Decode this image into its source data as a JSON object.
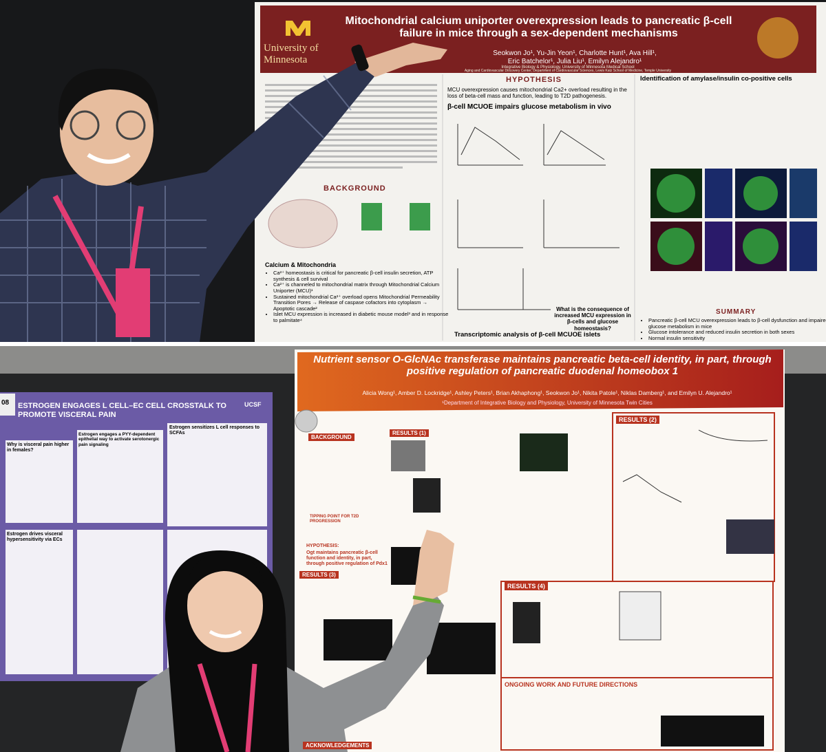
{
  "top_poster": {
    "university": "University of Minnesota",
    "title": "Mitochondrial calcium uniporter overexpression leads to pancreatic β-cell failure in mice through a sex-dependent mechanisms",
    "authors": [
      "Seokwon Jo¹, Yu-Jin Yeon¹, Charlotte Hunt¹, Ava Hill¹,",
      "Eric Batchelor¹, Julia Liu¹, Emilyn Alejandro¹"
    ],
    "affiliations": [
      "Integrative Biology & Physiology, University of Minnesota Medical School",
      "Aging and Cardiovascular Discovery Center, Department of Cardiovascular Sciences, Lewis Katz School of Medicine, Temple University"
    ],
    "background": {
      "heading": "BACKGROUND",
      "subheading": "Calcium & Mitochondria",
      "bullets": [
        "Ca²⁺ homeostasis is critical for pancreatic β-cell insulin secretion, ATP synthesis & cell survival",
        "Ca²⁺ is channeled to mitochondrial matrix through Mitochondrial Calcium Uniporter (MCU)¹",
        "Sustained mitochondrial Ca²⁺ overload opens Mitochondrial Permeability Transition Pores → Release of caspase cofactors into cytoplasm → Apoptotic cascade²",
        "Islet MCU expression is increased in diabetic mouse model³ and in response to palmitate⁴"
      ]
    },
    "hypothesis": {
      "heading": "HYPOTHESIS",
      "text": "MCU overexpression causes mitochondrial Ca2+ overload resulting in the loss of beta-cell mass and function, leading to T2D pathogenesis."
    },
    "results_heading": "β-cell MCUOE impairs glucose metabolism in vivo",
    "question": "What is the consequence of increased MCU expression in β-cells and glucose homeostasis?",
    "transcriptomic_heading": "Transcriptomic analysis of β-cell MCUOE islets",
    "identification_heading": "Identification of amylase/insulin co-positive cells",
    "summary": {
      "heading": "SUMMARY",
      "bullets": [
        "Pancreatic β-cell MCU overexpression leads to β-cell dysfunction and impaired glucose metabolism in mice",
        "Glucose intolerance and reduced insulin secretion in both sexes",
        "Normal insulin sensitivity"
      ]
    }
  },
  "left_poster": {
    "board_number": "08",
    "logo": "UCSF",
    "title": "ESTROGEN ENGAGES L CELL–EC CELL CROSSTALK TO PROMOTE VISCERAL PAIN",
    "panels": [
      "Why is visceral pain higher in females?",
      "Estrogen engages a PYY-dependent epithelial way to activate serotonergic pain signaling",
      "Estrogen sensitizes L cell responses to SCFAs",
      "Estrogen drives visceral hypersensitivity via ECs"
    ]
  },
  "right_poster": {
    "title": "Nutrient sensor O-GlcNAc transferase maintains pancreatic beta-cell identity, in part, through positive regulation of pancreatic duodenal homeobox 1",
    "authors": "Alicia Wong¹, Amber D. Lockridge¹, Ashley Peters¹, Brian Akhaphong¹, Seokwon Jo¹, Nikita Patole¹, Niklas Damberg¹, and Emilyn U. Alejandro¹",
    "affiliation": "¹Department of Integrative Biology and Physiology, University of Minnesota Twin Cities",
    "background_heading": "BACKGROUND",
    "tipping_point": "TIPPING POINT FOR T2D PROGRESSION",
    "hypothesis_heading": "HYPOTHESIS:",
    "hypothesis_text": "Ogt maintains pancreatic β-cell function and identity, in part, through positive regulation of Pdx1",
    "results": [
      "RESULTS (1)",
      "RESULTS (2)",
      "RESULTS (3)",
      "RESULTS (4)"
    ],
    "future_heading": "ONGOING WORK AND FUTURE DIRECTIONS",
    "acknowledgements_heading": "ACKNOWLEDGEMENTS"
  }
}
